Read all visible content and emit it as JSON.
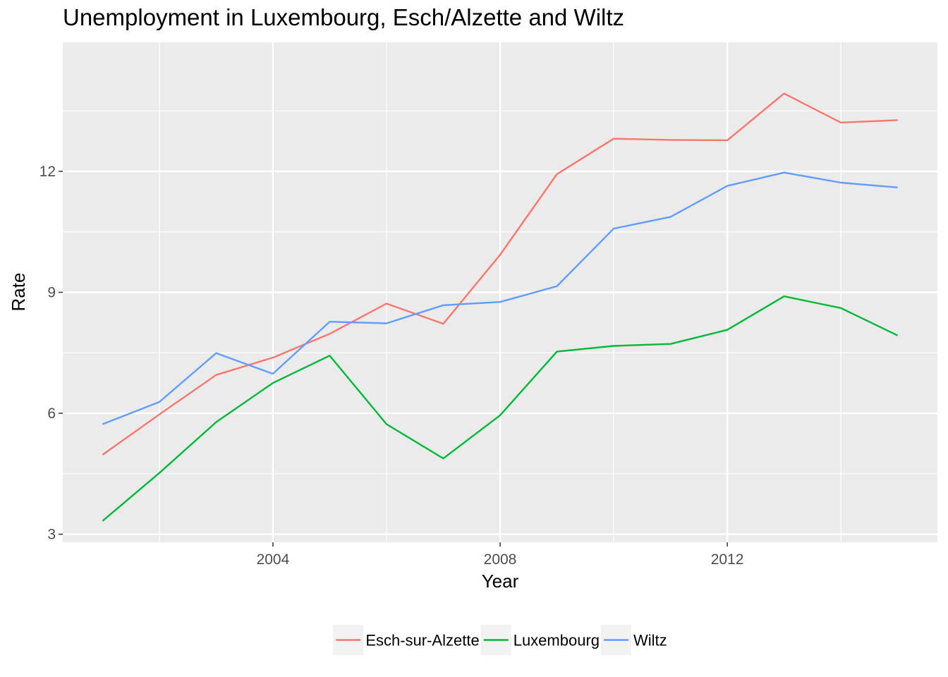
{
  "chart_data": {
    "type": "line",
    "title": "Unemployment in Luxembourg, Esch/Alzette and Wiltz",
    "xlabel": "Year",
    "ylabel": "Rate",
    "x": [
      2001,
      2002,
      2003,
      2004,
      2005,
      2006,
      2007,
      2008,
      2009,
      2010,
      2011,
      2012,
      2013,
      2014,
      2015
    ],
    "xlim": [
      2000.3,
      2015.7
    ],
    "ylim": [
      2.8,
      15.2
    ],
    "xticks": [
      2004,
      2008,
      2012
    ],
    "xtick_labels": [
      "2004",
      "2008",
      "2012"
    ],
    "xminor": [
      2002,
      2006,
      2010,
      2014
    ],
    "yticks": [
      3,
      6,
      9,
      12
    ],
    "ytick_labels": [
      "3",
      "6",
      "9",
      "12"
    ],
    "yminor": [
      4.5,
      7.5,
      10.5,
      13.5
    ],
    "grid": true,
    "legend_position": "bottom",
    "series": [
      {
        "name": "Esch-sur-Alzette",
        "color": "#F8766D",
        "values": [
          4.97,
          5.97,
          6.95,
          7.38,
          7.97,
          8.72,
          8.22,
          9.93,
          11.93,
          12.81,
          12.78,
          12.77,
          13.93,
          13.21,
          13.27
        ]
      },
      {
        "name": "Luxembourg",
        "color": "#00BA38",
        "values": [
          3.33,
          4.52,
          5.78,
          6.75,
          7.43,
          5.73,
          4.88,
          5.95,
          7.53,
          7.67,
          7.72,
          8.07,
          8.9,
          8.61,
          7.93
        ]
      },
      {
        "name": "Wiltz",
        "color": "#619CFF",
        "values": [
          5.73,
          6.28,
          7.49,
          6.98,
          8.27,
          8.23,
          8.68,
          8.76,
          9.15,
          10.58,
          10.87,
          11.64,
          11.97,
          11.72,
          11.6
        ]
      }
    ]
  }
}
